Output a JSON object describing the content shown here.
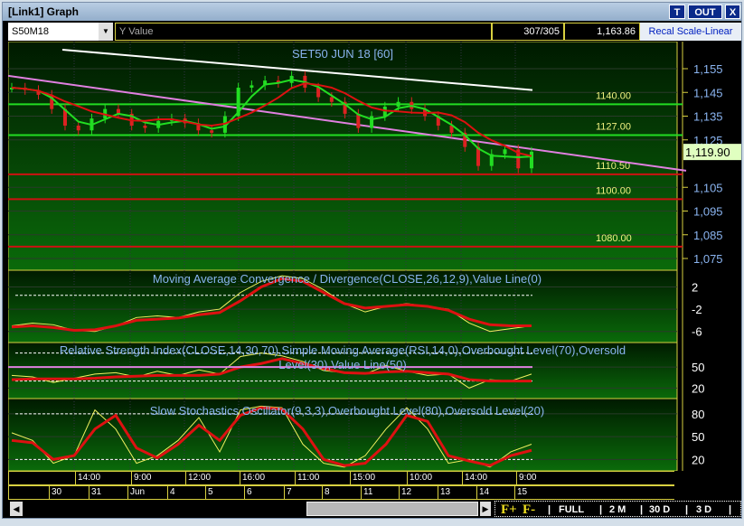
{
  "window": {
    "title": "[Link1] Graph",
    "buttons": [
      "T",
      "OUT",
      "X"
    ]
  },
  "toolbar": {
    "symbol": "S50M18",
    "y_value_label": "Y Value",
    "count": "307/305",
    "cursor_value": "1,163.86",
    "recal_button": "Recal Scale-Linear"
  },
  "colors": {
    "up_line": "#22dd22",
    "down_line": "#dd1111",
    "pink_trend": "#e080e0",
    "white_trend": "#ffffff",
    "label_yellow": "#f0f080",
    "axis_blue": "#8ab4f0"
  },
  "chart_data": [
    {
      "type": "candlestick",
      "title": "SET50 JUN 18   [60]",
      "ylim": [
        1071,
        1163
      ],
      "y_ticks": [
        1155,
        1145,
        1135,
        1125,
        1105,
        1095,
        1085,
        1075
      ],
      "last_price": "1,119.90",
      "levels": [
        {
          "value": "1140.00",
          "color": "green"
        },
        {
          "value": "1127.00",
          "color": "green"
        },
        {
          "value": "1110.50",
          "color": "red"
        },
        {
          "value": "1100.00",
          "color": "red"
        },
        {
          "value": "1080.00",
          "color": "red"
        }
      ],
      "close": [
        1147,
        1146,
        1144,
        1138,
        1131,
        1129,
        1134,
        1138,
        1136,
        1131,
        1130,
        1133,
        1134,
        1132,
        1129,
        1128,
        1135,
        1147,
        1148,
        1150,
        1149,
        1152,
        1147,
        1143,
        1141,
        1136,
        1130,
        1135,
        1139,
        1141,
        1138,
        1135,
        1131,
        1128,
        1122,
        1114,
        1119,
        1121,
        1113,
        1120
      ],
      "white_trend": [
        1163,
        1146
      ],
      "pink_trend": [
        1152,
        1112
      ]
    },
    {
      "type": "line",
      "title": "Moving Average Convergence / Divergence(CLOSE,26,12,9),Value Line(0)",
      "y_ticks": [
        2,
        -2,
        -6
      ],
      "ylim": [
        -8,
        5
      ],
      "macd": [
        -5,
        -4.5,
        -4.8,
        -5.8,
        -6,
        -5,
        -3.5,
        -3.2,
        -3.5,
        -2.5,
        -2,
        1,
        3,
        4,
        3.5,
        1.5,
        -1,
        -2.5,
        -1.5,
        -1,
        -1.5,
        -2,
        -4.5,
        -6,
        -5.5,
        -5
      ],
      "signal": [
        -5.2,
        -5,
        -5.3,
        -5.8,
        -5.7,
        -5,
        -4,
        -3.8,
        -3.6,
        -3,
        -2.6,
        -0.5,
        2,
        3.5,
        3,
        1,
        -1,
        -1.8,
        -1.5,
        -1.2,
        -1.5,
        -2.2,
        -3.8,
        -4.8,
        -5,
        -5
      ]
    },
    {
      "type": "line",
      "title": "Relative Strength Index(CLOSE,14,30,70),Simple Moving Average(RSI,14,0),Overbought Level(70),Oversold Level(30),Value Line(50)",
      "y_ticks": [
        50,
        20
      ],
      "ylim": [
        5,
        85
      ],
      "rsi": [
        38,
        36,
        28,
        34,
        40,
        42,
        36,
        44,
        38,
        46,
        40,
        65,
        70,
        66,
        58,
        45,
        42,
        40,
        52,
        44,
        38,
        40,
        20,
        32,
        30,
        40
      ],
      "sma": [
        32,
        33,
        33,
        33,
        34,
        36,
        37,
        38,
        38,
        38,
        40,
        50,
        55,
        62,
        55,
        48,
        42,
        41,
        43,
        44,
        42,
        40,
        32,
        30,
        30,
        30
      ]
    },
    {
      "type": "line",
      "title": "Slow Stochastics Oscillator(9,3,3),Overbought Level(80),Oversold Level(20)",
      "y_ticks": [
        80,
        50,
        20
      ],
      "ylim": [
        5,
        100
      ],
      "k": [
        55,
        45,
        15,
        25,
        85,
        60,
        15,
        25,
        45,
        75,
        30,
        85,
        90,
        88,
        40,
        15,
        10,
        25,
        60,
        88,
        60,
        15,
        20,
        10,
        30,
        40
      ],
      "d": [
        45,
        42,
        20,
        25,
        60,
        78,
        35,
        22,
        40,
        65,
        45,
        78,
        88,
        86,
        60,
        20,
        12,
        15,
        40,
        78,
        70,
        25,
        18,
        12,
        25,
        32
      ]
    }
  ],
  "time_axis": {
    "times": [
      "14:00",
      "9:00",
      "12:00",
      "16:00",
      "11:00",
      "15:00",
      "10:00",
      "14:00",
      "9:00"
    ],
    "dates": [
      "30",
      "31",
      "Jun",
      "4",
      "5",
      "6",
      "7",
      "8",
      "11",
      "12",
      "13",
      "14",
      "15"
    ]
  },
  "nav": {
    "zoom_in": "F+",
    "zoom_out": "F-",
    "ranges": [
      "FULL",
      "2 M",
      "30 D",
      "3 D"
    ]
  }
}
